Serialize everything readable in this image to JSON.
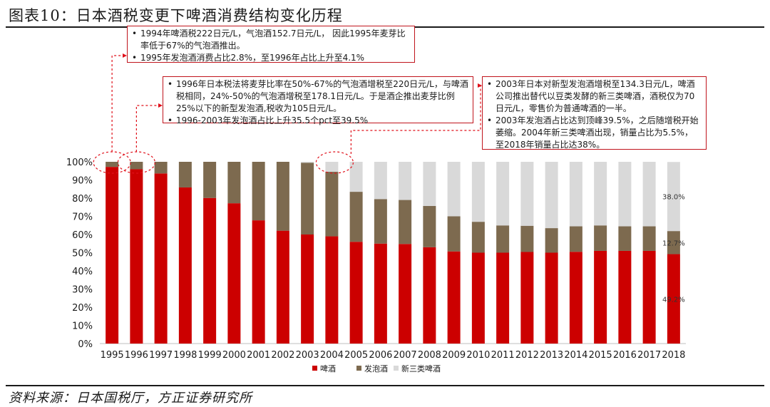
{
  "title": "图表10：日本酒税变更下啤酒消费结构变化历程",
  "source": "资料来源：日本国税厅，方正证券研究所",
  "annotations": [
    {
      "bullets": [
        "1994年啤酒税222日元/L，气泡酒152.7日元/L， 因此1995年麦芽比率低于67%的气泡酒推出。",
        "1995年发泡酒消费占比2.8%，至1996年占比上升至4.1%"
      ]
    },
    {
      "bullets": [
        "1996年日本税法将麦芽比率在50%-67%的气泡酒增税至220日元/L，与啤酒税相同，24%-50%的气泡酒增税至178.1日元/L。于是酒企推出麦芽比例25%以下的新型发泡酒,税收为105日元/L。",
        "1996-2003年发泡酒占比上升35.5个pct至39.5%"
      ]
    },
    {
      "bullets": [
        "2003年日本对新型发泡酒增税至134.3日元/L，啤酒公司推出替代以豆类发酵的新三类啤酒，酒税仅为70日元/L，零售价为普通啤酒的一半。",
        "2003年发泡酒占比达到顶峰39.5%，之后随增税开始萎缩。2004年新三类啤酒出现，销量占比为5.5%，至2018年销量占比达38%。"
      ]
    }
  ],
  "chart_data": {
    "type": "bar",
    "stacked": true,
    "categories": [
      "1995",
      "1996",
      "1997",
      "1998",
      "1999",
      "2000",
      "2001",
      "2002",
      "2003",
      "2004",
      "2005",
      "2006",
      "2007",
      "2008",
      "2009",
      "2010",
      "2011",
      "2012",
      "2013",
      "2014",
      "2015",
      "2016",
      "2017",
      "2018"
    ],
    "series": [
      {
        "name": "啤酒",
        "color": "#cc0000",
        "values": [
          97.2,
          95.9,
          93.6,
          85.9,
          80.1,
          77.2,
          67.8,
          62.1,
          60.0,
          59.0,
          56.0,
          55.0,
          54.8,
          53.0,
          50.7,
          50.0,
          50.0,
          50.4,
          50.0,
          50.5,
          51.0,
          51.0,
          51.0,
          49.2
        ]
      },
      {
        "name": "发泡酒",
        "color": "#7d6a4f",
        "values": [
          2.8,
          4.1,
          6.4,
          14.1,
          19.9,
          22.8,
          32.2,
          37.9,
          39.5,
          35.5,
          27.5,
          24.5,
          24.2,
          22.7,
          19.3,
          17.0,
          15.0,
          14.4,
          13.5,
          14.0,
          14.0,
          13.5,
          13.5,
          12.7
        ]
      },
      {
        "name": "新三类啤酒",
        "color": "#d9d9d9",
        "values": [
          0,
          0,
          0,
          0,
          0,
          0,
          0,
          0,
          0.5,
          5.5,
          16.5,
          20.5,
          21.0,
          24.3,
          30.0,
          33.0,
          35.0,
          35.2,
          36.5,
          35.5,
          35.0,
          35.5,
          35.5,
          38.0
        ]
      }
    ],
    "data_labels": [
      {
        "category": "2018",
        "series": "新三类啤酒",
        "text": "38.0%"
      },
      {
        "category": "2018",
        "series": "发泡酒",
        "text": "12.7%"
      },
      {
        "category": "2018",
        "series": "啤酒",
        "text": "49.2%"
      }
    ],
    "ylim": [
      0,
      100
    ],
    "yticks": [
      "0%",
      "10%",
      "20%",
      "30%",
      "40%",
      "50%",
      "60%",
      "70%",
      "80%",
      "90%",
      "100%"
    ],
    "legend": [
      "啤酒",
      "发泡酒",
      "新三类啤酒"
    ],
    "legend_position": "bottom",
    "highlight_categories": [
      "1995",
      "1996",
      "2004"
    ]
  }
}
